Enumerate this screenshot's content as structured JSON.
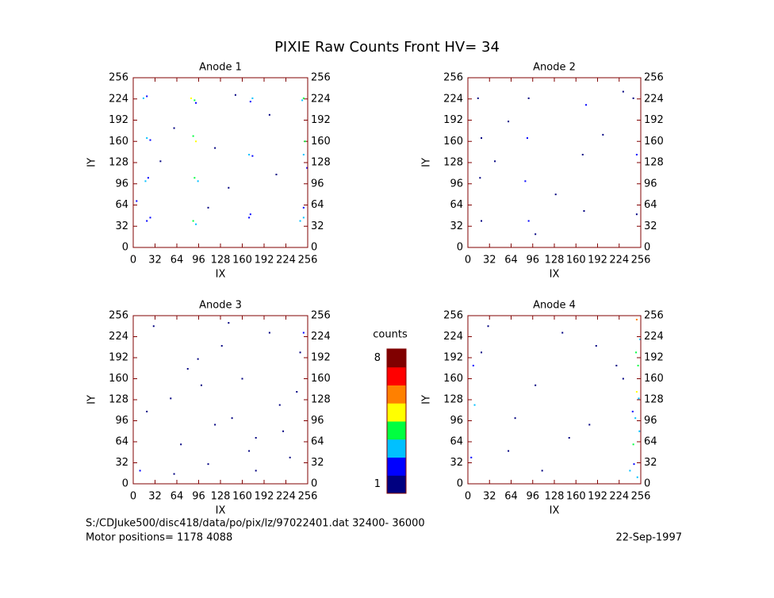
{
  "title": "PIXIE Raw Counts Front HV= 34",
  "colorscale": [
    "#000080",
    "#0000ff",
    "#00c0ff",
    "#00ff40",
    "#ffff00",
    "#ff8000",
    "#ff0000",
    "#800000"
  ],
  "colorbar": {
    "label": "counts",
    "lim": [
      1,
      8
    ],
    "ticks": [
      1,
      8
    ]
  },
  "footer": {
    "path": "S:/CDJuke500/disc418/data/po/pix/lz/97022401.dat   32400-  36000",
    "motor": "Motor positions= 1178 4088",
    "date": "22-Sep-1997"
  },
  "chart_data": [
    {
      "type": "scatter",
      "title": "Anode 1",
      "x_label": "IX",
      "y_label": "IY",
      "xlim": [
        0,
        256
      ],
      "ylim": [
        0,
        256
      ],
      "xticks": [
        0,
        32,
        64,
        96,
        128,
        160,
        192,
        224,
        256
      ],
      "yticks": [
        0,
        32,
        64,
        96,
        128,
        160,
        192,
        224,
        256
      ],
      "x": [
        15,
        20,
        85,
        90,
        92,
        175,
        172,
        250,
        248,
        20,
        25,
        88,
        92,
        170,
        175,
        250,
        252,
        18,
        22,
        90,
        95,
        172,
        250,
        245,
        20,
        25,
        88,
        92,
        170,
        250,
        120,
        60,
        140,
        200,
        110,
        40,
        210,
        150,
        5,
        255
      ],
      "y": [
        225,
        228,
        225,
        222,
        218,
        225,
        220,
        225,
        222,
        165,
        162,
        168,
        160,
        140,
        138,
        140,
        160,
        100,
        105,
        105,
        100,
        50,
        60,
        40,
        40,
        45,
        40,
        35,
        45,
        45,
        150,
        180,
        90,
        200,
        60,
        130,
        110,
        230,
        70,
        120
      ],
      "values": [
        3,
        2,
        5,
        4,
        2,
        3,
        2,
        4,
        3,
        3,
        2,
        4,
        5,
        3,
        2,
        3,
        4,
        3,
        2,
        4,
        3,
        2,
        2,
        3,
        2,
        2,
        4,
        3,
        2,
        3,
        1,
        1,
        1,
        1,
        1,
        1,
        1,
        1,
        2,
        2
      ]
    },
    {
      "type": "scatter",
      "title": "Anode 2",
      "x_label": "IX",
      "y_label": "IY",
      "xlim": [
        0,
        256
      ],
      "ylim": [
        0,
        256
      ],
      "xticks": [
        0,
        32,
        64,
        96,
        128,
        160,
        192,
        224,
        256
      ],
      "yticks": [
        0,
        32,
        64,
        96,
        128,
        160,
        192,
        224,
        256
      ],
      "x": [
        15,
        90,
        175,
        245,
        20,
        88,
        170,
        250,
        18,
        85,
        250,
        20,
        90,
        172,
        60,
        130,
        200,
        100,
        230,
        40
      ],
      "y": [
        225,
        225,
        215,
        225,
        165,
        165,
        140,
        140,
        105,
        100,
        50,
        40,
        40,
        55,
        190,
        80,
        170,
        20,
        235,
        130
      ],
      "values": [
        1,
        1,
        2,
        1,
        1,
        2,
        1,
        2,
        1,
        2,
        1,
        1,
        2,
        1,
        1,
        1,
        1,
        1,
        1,
        1
      ]
    },
    {
      "type": "scatter",
      "title": "Anode 3",
      "x_label": "IX",
      "y_label": "IY",
      "xlim": [
        0,
        256
      ],
      "ylim": [
        0,
        256
      ],
      "xticks": [
        0,
        32,
        64,
        96,
        128,
        160,
        192,
        224,
        256
      ],
      "yticks": [
        0,
        32,
        64,
        96,
        128,
        160,
        192,
        224,
        256
      ],
      "x": [
        10,
        30,
        55,
        70,
        95,
        110,
        130,
        145,
        160,
        180,
        200,
        215,
        230,
        245,
        250,
        20,
        60,
        100,
        140,
        180,
        220,
        80,
        120,
        170,
        240
      ],
      "y": [
        20,
        240,
        130,
        60,
        190,
        30,
        210,
        100,
        160,
        70,
        230,
        120,
        40,
        200,
        230,
        110,
        15,
        150,
        245,
        20,
        80,
        175,
        90,
        50,
        140
      ],
      "values": [
        2,
        1,
        1,
        1,
        1,
        1,
        1,
        1,
        1,
        1,
        1,
        1,
        1,
        1,
        2,
        1,
        1,
        1,
        1,
        1,
        1,
        1,
        1,
        1,
        1
      ]
    },
    {
      "type": "scatter",
      "title": "Anode 4",
      "x_label": "IX",
      "y_label": "IY",
      "xlim": [
        0,
        256
      ],
      "ylim": [
        0,
        256
      ],
      "xticks": [
        0,
        32,
        64,
        96,
        128,
        160,
        192,
        224,
        256
      ],
      "yticks": [
        0,
        32,
        64,
        96,
        128,
        160,
        192,
        224,
        256
      ],
      "x": [
        5,
        10,
        20,
        60,
        100,
        140,
        180,
        220,
        240,
        245,
        248,
        250,
        252,
        255,
        250,
        246,
        253,
        249,
        30,
        70,
        110,
        150,
        190,
        230,
        8,
        254,
        244,
        251
      ],
      "y": [
        40,
        120,
        200,
        50,
        150,
        230,
        90,
        180,
        20,
        60,
        100,
        140,
        180,
        220,
        250,
        30,
        130,
        200,
        240,
        100,
        20,
        70,
        210,
        160,
        180,
        80,
        110,
        10
      ],
      "values": [
        2,
        3,
        1,
        1,
        1,
        1,
        1,
        1,
        3,
        4,
        3,
        5,
        4,
        3,
        6,
        2,
        3,
        4,
        1,
        1,
        1,
        1,
        1,
        1,
        2,
        3,
        2,
        3
      ]
    }
  ]
}
